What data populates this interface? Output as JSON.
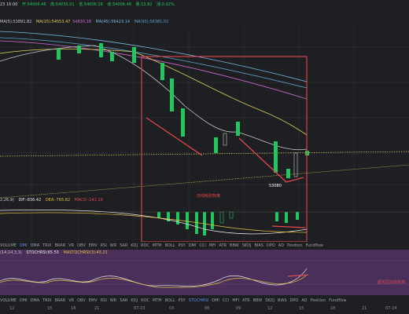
{
  "price_header": {
    "time": "23 16:00",
    "fields": [
      "开:54006.48",
      "高:54035.01",
      "低:54006.28",
      "收:54006.48",
      "量:13.82",
      "涨:0.02%"
    ]
  },
  "ma_legend": {
    "ma5": "MA(5):53891.82",
    "ma15": "MA(15):54553.47",
    "ma_mid": "54830.18",
    "ma45": "MA(45):56423.14",
    "ma90": "MA(90):56381.02"
  },
  "main_chart": {
    "low_label": "53080",
    "annotation": "日线级别背离"
  },
  "macd_legend": {
    "params": "2,26,9)",
    "dif": "DIF:-836.42",
    "dea": "DEA:-765.82",
    "macd": "MACD:-141.19"
  },
  "toolbar1": {
    "items": [
      "VOLUME",
      "DMI",
      "DMA",
      "TRIX",
      "BRAR",
      "VR",
      "OBV",
      "EMV",
      "RSI",
      "WR",
      "SAR",
      "KDJ",
      "ROC",
      "MTM",
      "BOLL",
      "PSY",
      "DMI",
      "CCI",
      "MFI",
      "ATR",
      "BBW",
      "SKDJ",
      "BIAS",
      "DPO",
      "AD",
      "Position",
      "Fundflow"
    ],
    "active_index": 1
  },
  "stoch_legend": {
    "params": "(14,14,3,3)",
    "stochrsi": "STOCHRSI:65.55",
    "mastochrsi": "MASTOCHRSI(3):45.21"
  },
  "stoch_annotation": "超买区出现背离",
  "toolbar2": {
    "items": [
      "VOLUME",
      "DMI",
      "DMA",
      "TRIX",
      "BRAR",
      "VR",
      "OBV",
      "EMV",
      "RSI",
      "WR",
      "SAR",
      "KDJ",
      "ROC",
      "MTM",
      "BOLL",
      "PSY",
      "STOCHRSI",
      "DMI",
      "CCI",
      "MFI",
      "ATR",
      "BBW",
      "SKDJ",
      "BIAS",
      "DPO",
      "AD",
      "Position",
      "Fundflow"
    ],
    "active_index": 16
  },
  "date_axis": {
    "labels": [
      "12",
      "15",
      "18",
      "21",
      "07-23",
      "03",
      "06",
      "09",
      "12",
      "15",
      "18",
      "21",
      "07-24"
    ]
  },
  "colors": {
    "up": "#22c55e",
    "down": "#e5484d",
    "highlight": "#e5484d",
    "ma5": "#c8c8c8",
    "ma15": "#e0d05a",
    "ma_mid": "#d06cd0",
    "ma45": "#7bb8e0",
    "dif": "#e8e8e8",
    "dea": "#e0c040",
    "stoch_bg": "#4a2f5a",
    "active_tab": "#5b8df0"
  }
}
